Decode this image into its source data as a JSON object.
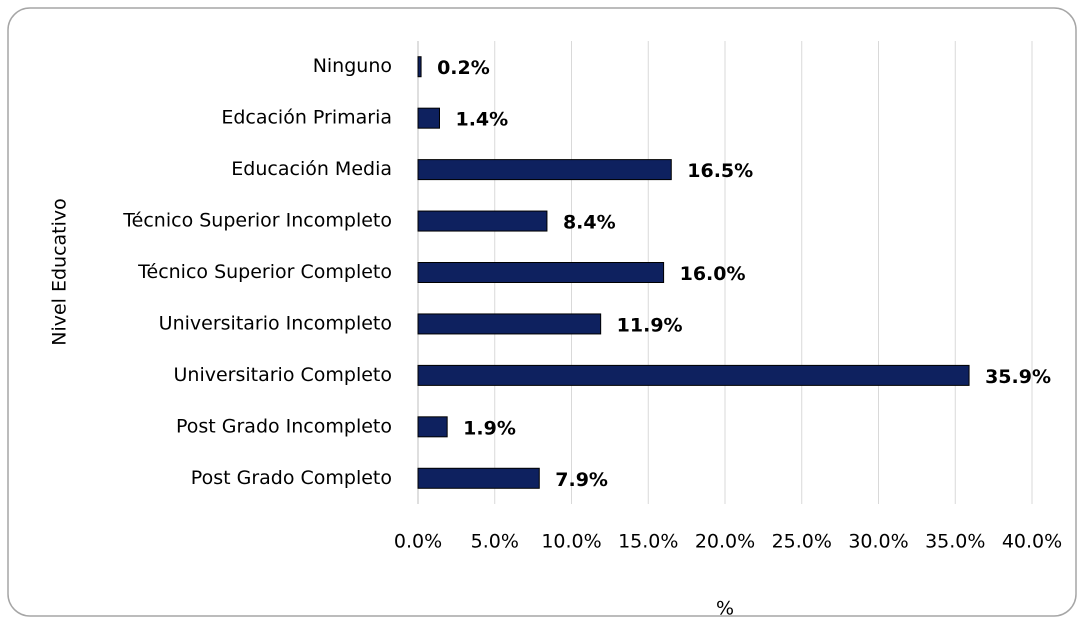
{
  "chart_data": {
    "type": "bar",
    "orientation": "horizontal",
    "xlabel": "%",
    "ylabel": "Nivel Educativo",
    "categories": [
      "Ninguno",
      "Edcación Primaria",
      "Educación Media",
      "Técnico Superior Incompleto",
      "Técnico Superior Completo",
      "Universitario Incompleto",
      "Universitario Completo",
      "Post Grado Incompleto",
      "Post Grado Completo"
    ],
    "values": [
      0.2,
      1.4,
      16.5,
      8.4,
      16.0,
      11.9,
      35.9,
      1.9,
      7.9
    ],
    "value_labels": [
      "0.2%",
      "1.4%",
      "16.5%",
      "8.4%",
      "16.0%",
      "11.9%",
      "35.9%",
      "1.9%",
      "7.9%"
    ],
    "color": "#0e215f",
    "xlim": [
      0,
      40
    ],
    "xticks": [
      {
        "value": 0,
        "label": "0.0%"
      },
      {
        "value": 5,
        "label": "5.0%"
      },
      {
        "value": 10,
        "label": "10.0%"
      },
      {
        "value": 15,
        "label": "15.0%"
      },
      {
        "value": 20,
        "label": "20.0%"
      },
      {
        "value": 25,
        "label": "25.0%"
      },
      {
        "value": 30,
        "label": "30.0%"
      },
      {
        "value": 35,
        "label": "35.0%"
      },
      {
        "value": 40,
        "label": "40.0%"
      }
    ],
    "grid": true
  }
}
